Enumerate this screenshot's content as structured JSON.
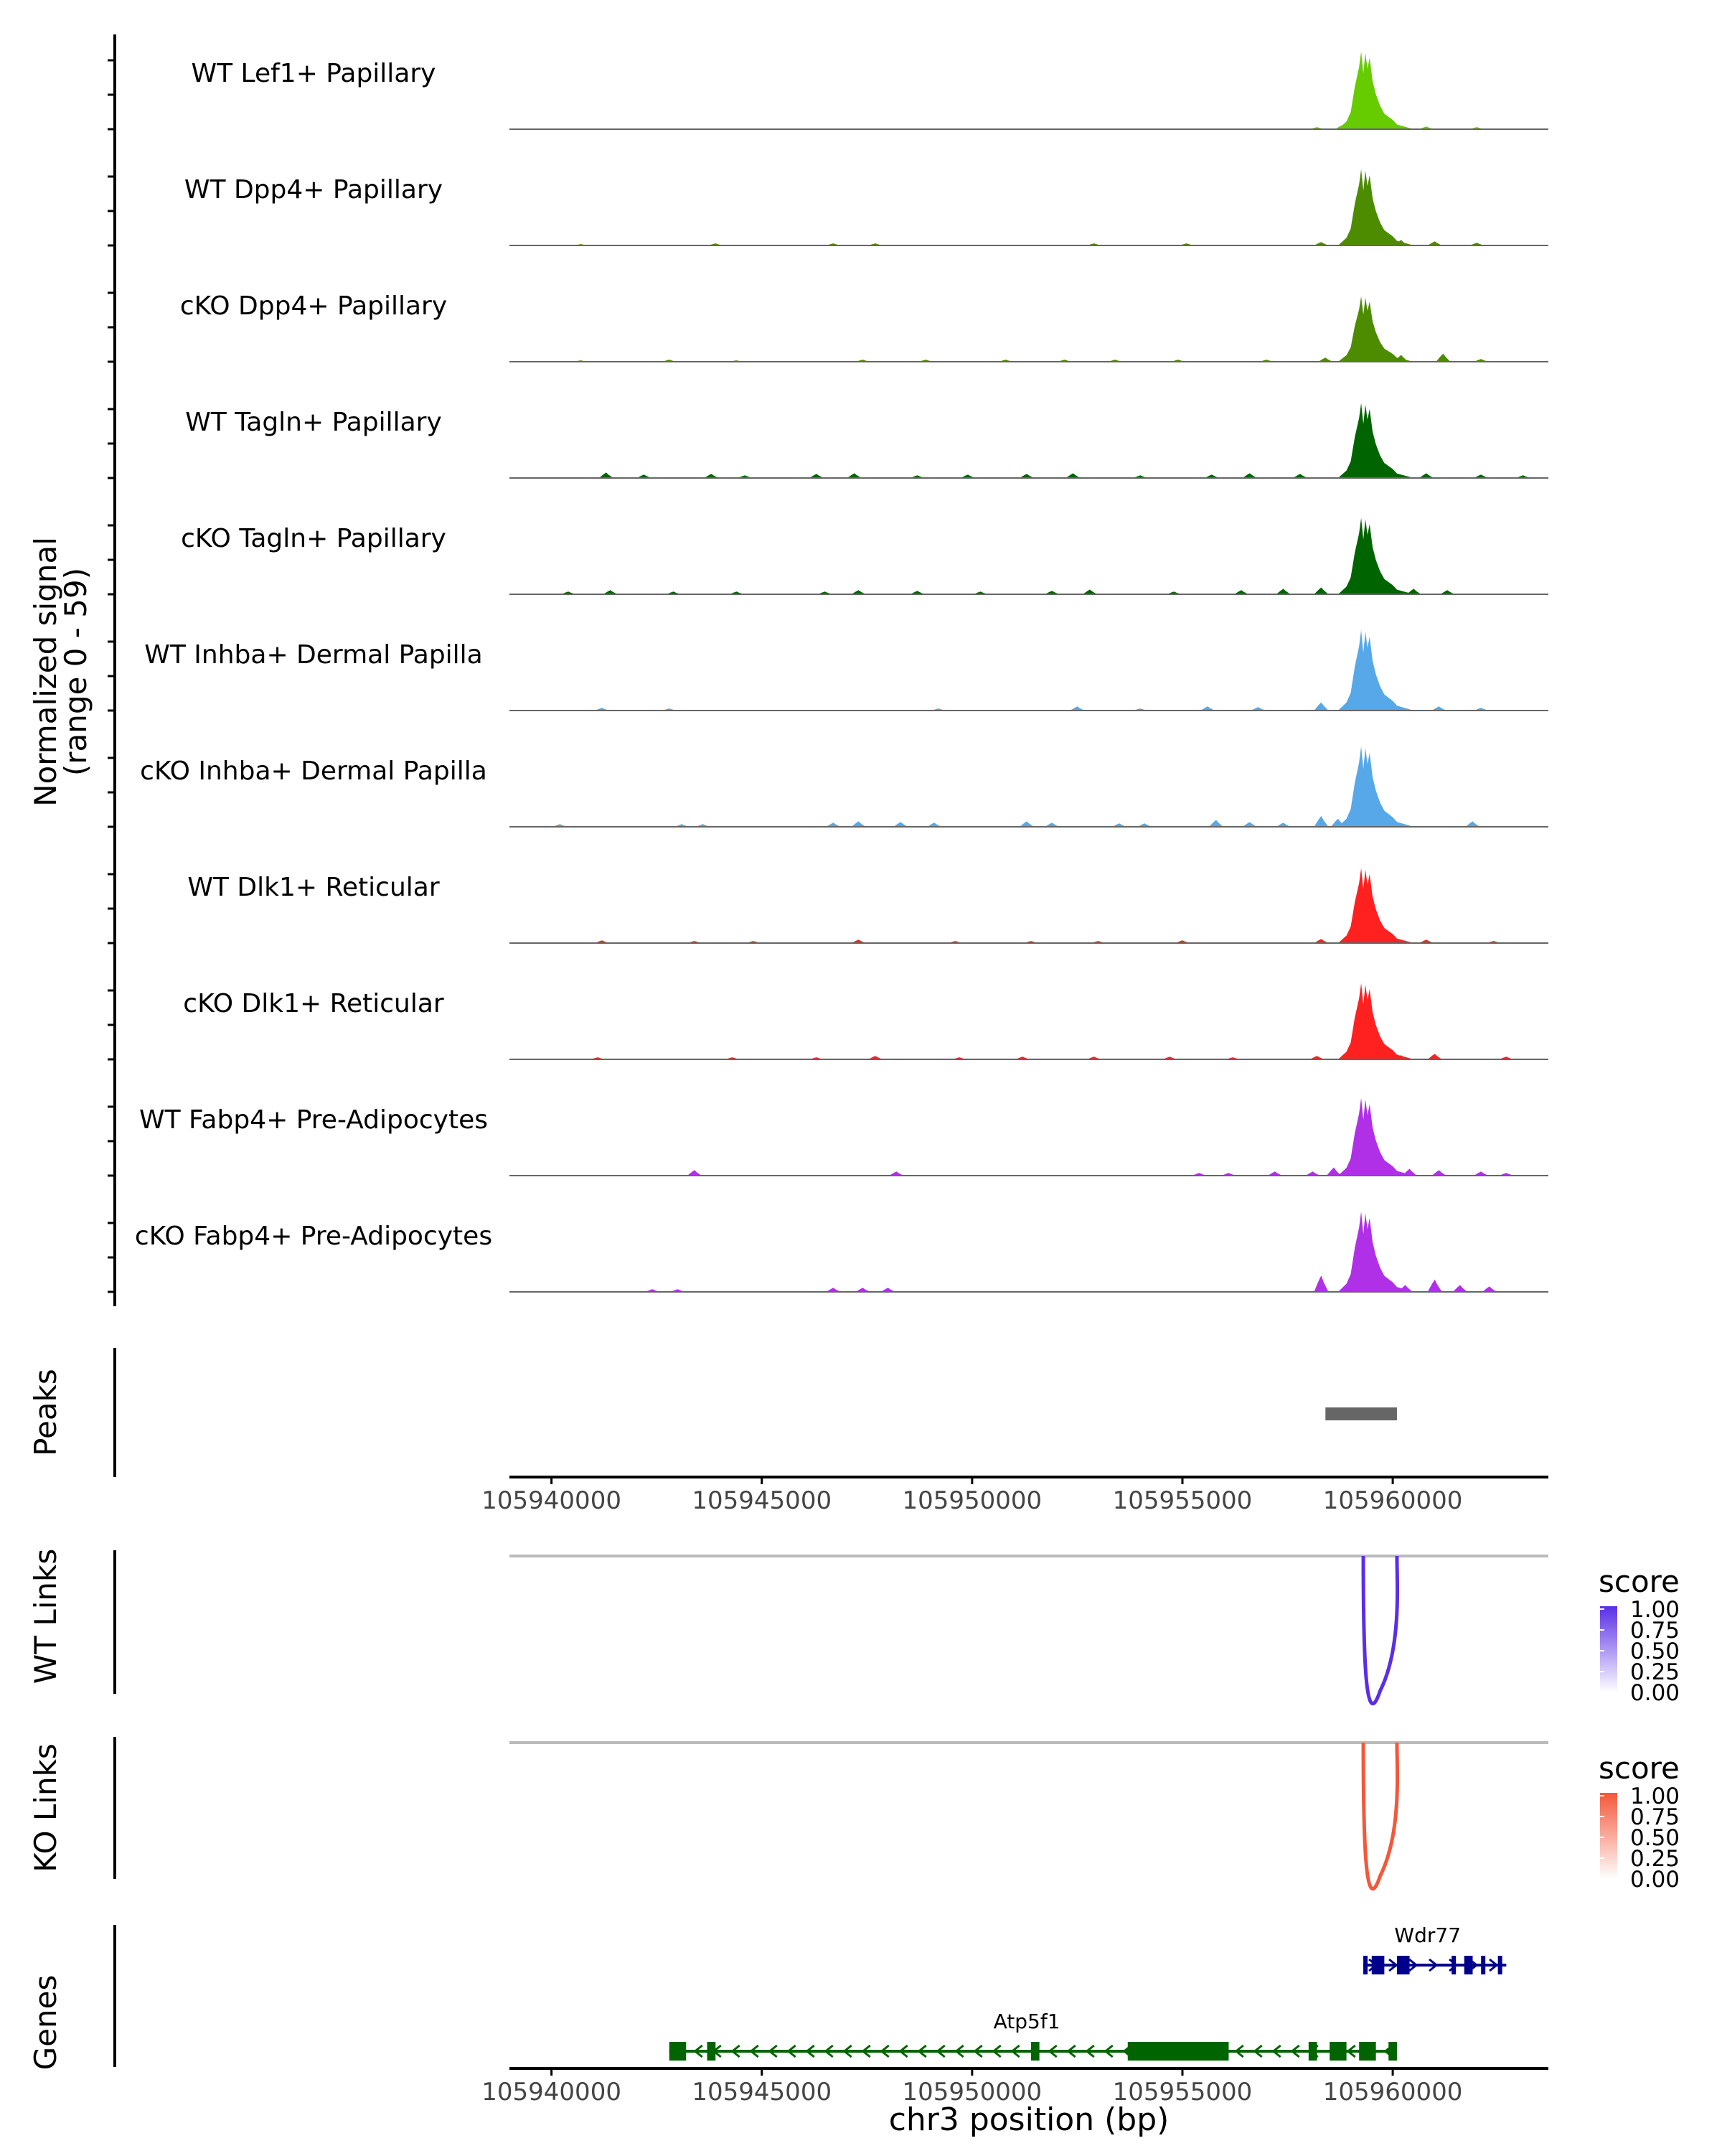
{
  "chart_data": {
    "type": "area",
    "region": "chr3",
    "xlim": [
      105939000,
      105963700
    ],
    "x_ticks": [
      105940000,
      105945000,
      105950000,
      105955000,
      105960000
    ],
    "x_tick_labels": [
      "105940000",
      "105945000",
      "105950000",
      "105955000",
      "105960000"
    ],
    "xlabel": "chr3 position (bp)",
    "ylabel_line1": "Normalized signal",
    "ylabel_line2": "(range 0 - 59)",
    "ylim": [
      0,
      59
    ],
    "coverage_tracks": [
      {
        "name": "WT Lef1+ Papillary",
        "color": "#66cc00",
        "peak_max": 57,
        "minor": [
          [
            105958200,
            1.5
          ],
          [
            105958800,
            3
          ],
          [
            105960800,
            2
          ],
          [
            105962000,
            1.5
          ]
        ]
      },
      {
        "name": "WT Dpp4+ Papillary",
        "color": "#4d8c00",
        "peak_max": 56,
        "minor": [
          [
            105940700,
            1
          ],
          [
            105943900,
            1.5
          ],
          [
            105946700,
            1.5
          ],
          [
            105947700,
            1.5
          ],
          [
            105952900,
            1.5
          ],
          [
            105955100,
            1.5
          ],
          [
            105958300,
            2.5
          ],
          [
            105960200,
            4
          ],
          [
            105961000,
            3
          ],
          [
            105962000,
            2
          ]
        ]
      },
      {
        "name": "cKO Dpp4+ Papillary",
        "color": "#4d8c00",
        "peak_max": 48,
        "minor": [
          [
            105940700,
            1
          ],
          [
            105942800,
            1.5
          ],
          [
            105944400,
            1
          ],
          [
            105947400,
            1.5
          ],
          [
            105948900,
            1.5
          ],
          [
            105950800,
            1.5
          ],
          [
            105952200,
            1.5
          ],
          [
            105953400,
            1.5
          ],
          [
            105954900,
            1.5
          ],
          [
            105957000,
            1.5
          ],
          [
            105958400,
            3
          ],
          [
            105960200,
            5
          ],
          [
            105961200,
            6
          ],
          [
            105962100,
            2
          ]
        ]
      },
      {
        "name": "WT Tagln+ Papillary",
        "color": "#006400",
        "peak_max": 55,
        "minor": [
          [
            105941300,
            4
          ],
          [
            105942200,
            2.5
          ],
          [
            105943800,
            3
          ],
          [
            105944600,
            2
          ],
          [
            105946300,
            3
          ],
          [
            105947200,
            3.5
          ],
          [
            105948700,
            2
          ],
          [
            105949900,
            2.5
          ],
          [
            105951300,
            3
          ],
          [
            105952400,
            3.5
          ],
          [
            105954000,
            2
          ],
          [
            105955700,
            2.5
          ],
          [
            105956600,
            3.5
          ],
          [
            105957800,
            3
          ],
          [
            105960800,
            3.5
          ],
          [
            105962100,
            2.5
          ],
          [
            105963100,
            2
          ]
        ]
      },
      {
        "name": "cKO Tagln+ Papillary",
        "color": "#006400",
        "peak_max": 56,
        "minor": [
          [
            105940400,
            2
          ],
          [
            105941400,
            3
          ],
          [
            105942900,
            2
          ],
          [
            105944400,
            2
          ],
          [
            105946500,
            2
          ],
          [
            105947300,
            3
          ],
          [
            105948700,
            2.5
          ],
          [
            105950200,
            2
          ],
          [
            105951900,
            2.5
          ],
          [
            105952800,
            3.5
          ],
          [
            105954800,
            2
          ],
          [
            105956400,
            3
          ],
          [
            105957400,
            4
          ],
          [
            105958300,
            5
          ],
          [
            105960500,
            4
          ],
          [
            105961300,
            3
          ]
        ]
      },
      {
        "name": "WT Inhba+ Dermal Papilla",
        "color": "#56a8e8",
        "peak_max": 59,
        "minor": [
          [
            105941200,
            2
          ],
          [
            105942800,
            1.5
          ],
          [
            105949200,
            1.5
          ],
          [
            105952500,
            3
          ],
          [
            105954000,
            1.5
          ],
          [
            105955600,
            3
          ],
          [
            105956800,
            2.5
          ],
          [
            105958300,
            6
          ],
          [
            105961100,
            3
          ],
          [
            105962100,
            2
          ]
        ]
      },
      {
        "name": "cKO Inhba+ Dermal Papilla",
        "color": "#56a8e8",
        "peak_max": 59,
        "minor": [
          [
            105940200,
            2
          ],
          [
            105943100,
            2
          ],
          [
            105943600,
            2
          ],
          [
            105946700,
            3
          ],
          [
            105947300,
            4
          ],
          [
            105948300,
            3.5
          ],
          [
            105949100,
            3
          ],
          [
            105951300,
            4
          ],
          [
            105951900,
            3
          ],
          [
            105953500,
            2.5
          ],
          [
            105954100,
            2.5
          ],
          [
            105955800,
            5
          ],
          [
            105956600,
            3.5
          ],
          [
            105957400,
            3
          ],
          [
            105958300,
            8
          ],
          [
            105958700,
            6
          ],
          [
            105961900,
            4
          ]
        ]
      },
      {
        "name": "WT Dlk1+ Reticular",
        "color": "#ff2020",
        "peak_max": 55,
        "minor": [
          [
            105941200,
            2
          ],
          [
            105943400,
            1.5
          ],
          [
            105944800,
            1.5
          ],
          [
            105947300,
            2.5
          ],
          [
            105949600,
            1.5
          ],
          [
            105951400,
            1.5
          ],
          [
            105953000,
            1.5
          ],
          [
            105955000,
            2
          ],
          [
            105958300,
            3
          ],
          [
            105960800,
            2.5
          ],
          [
            105962400,
            1.5
          ]
        ]
      },
      {
        "name": "cKO Dlk1+ Reticular",
        "color": "#ff2020",
        "peak_max": 56,
        "minor": [
          [
            105941100,
            1.5
          ],
          [
            105944300,
            1.5
          ],
          [
            105946300,
            1.5
          ],
          [
            105947700,
            2.5
          ],
          [
            105949700,
            1.5
          ],
          [
            105951200,
            2
          ],
          [
            105952900,
            2
          ],
          [
            105954700,
            2
          ],
          [
            105956200,
            1.5
          ],
          [
            105958200,
            2.5
          ],
          [
            105960200,
            3
          ],
          [
            105961000,
            4
          ],
          [
            105962700,
            2
          ]
        ]
      },
      {
        "name": "WT Fabp4+ Pre-Adipocytes",
        "color": "#b030e8",
        "peak_max": 57,
        "minor": [
          [
            105943400,
            4
          ],
          [
            105948200,
            3
          ],
          [
            105955400,
            2
          ],
          [
            105956100,
            2
          ],
          [
            105957200,
            3
          ],
          [
            105958100,
            3
          ],
          [
            105958600,
            6
          ],
          [
            105960400,
            5
          ],
          [
            105961100,
            4
          ],
          [
            105962100,
            3
          ],
          [
            105962700,
            2
          ]
        ]
      },
      {
        "name": "cKO Fabp4+ Pre-Adipocytes",
        "color": "#b030e8",
        "peak_max": 59,
        "minor": [
          [
            105942400,
            2
          ],
          [
            105943000,
            2
          ],
          [
            105946700,
            3
          ],
          [
            105947400,
            3
          ],
          [
            105948000,
            3
          ],
          [
            105958300,
            12
          ],
          [
            105958900,
            6
          ],
          [
            105960300,
            5
          ],
          [
            105961000,
            9
          ],
          [
            105961600,
            5
          ],
          [
            105962300,
            4
          ]
        ]
      }
    ],
    "peaks_track": {
      "label": "Peaks",
      "start": 105958400,
      "end": 105960100,
      "color": "#666666"
    },
    "link_tracks": [
      {
        "label": "WT Links",
        "legend_title": "score",
        "color": "#5a2ee6",
        "legend_ticks": [
          "1.00",
          "0.75",
          "0.50",
          "0.25",
          "0.00"
        ],
        "arc": {
          "start": 105959300,
          "end": 105960100,
          "score": 0.8
        }
      },
      {
        "label": "KO Links",
        "legend_title": "score",
        "color": "#f4573a",
        "legend_ticks": [
          "1.00",
          "0.75",
          "0.50",
          "0.25",
          "0.00"
        ],
        "arc": {
          "start": 105959300,
          "end": 105960100,
          "score": 0.8
        }
      }
    ],
    "genes_track": {
      "label": "Genes",
      "genes": [
        {
          "name": "Wdr77",
          "strand": "+",
          "start": 105959300,
          "end": 105962700,
          "color": "#00008b",
          "exons": [
            [
              105959300,
              105959400
            ],
            [
              105959500,
              105959800
            ],
            [
              105960100,
              105960400
            ],
            [
              105961400,
              105961500
            ],
            [
              105961700,
              105961900
            ],
            [
              105962100,
              105962200
            ],
            [
              105962500,
              105962600
            ]
          ]
        },
        {
          "name": "Atp5f1",
          "strand": "-",
          "start": 105942800,
          "end": 105960100,
          "color": "#006400",
          "exons": [
            [
              105942800,
              105943200
            ],
            [
              105943700,
              105943900
            ],
            [
              105951400,
              105951600
            ],
            [
              105953700,
              105956100
            ],
            [
              105958000,
              105958200
            ],
            [
              105958500,
              105958900
            ],
            [
              105959200,
              105959600
            ],
            [
              105959900,
              105960100
            ]
          ]
        }
      ]
    }
  }
}
